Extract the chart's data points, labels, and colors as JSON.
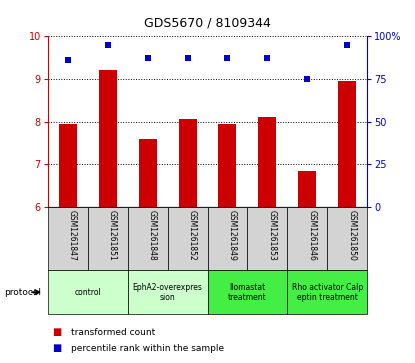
{
  "title": "GDS5670 / 8109344",
  "samples": [
    "GSM1261847",
    "GSM1261851",
    "GSM1261848",
    "GSM1261852",
    "GSM1261849",
    "GSM1261853",
    "GSM1261846",
    "GSM1261850"
  ],
  "transformed_counts": [
    7.95,
    9.2,
    7.6,
    8.05,
    7.95,
    8.1,
    6.85,
    8.95
  ],
  "percentile_ranks": [
    86,
    95,
    87,
    87,
    87,
    87,
    75,
    95
  ],
  "ylim_left": [
    6,
    10
  ],
  "ylim_right": [
    0,
    100
  ],
  "yticks_left": [
    6,
    7,
    8,
    9,
    10
  ],
  "yticks_right": [
    0,
    25,
    50,
    75,
    100
  ],
  "bar_color": "#cc0000",
  "scatter_color": "#0000cc",
  "groups": [
    {
      "label": "control",
      "indices": [
        0,
        1
      ],
      "color": "#ccffcc"
    },
    {
      "label": "EphA2-overexpres\nsion",
      "indices": [
        2,
        3
      ],
      "color": "#ccffcc"
    },
    {
      "label": "llomastat\ntreatment",
      "indices": [
        4,
        5
      ],
      "color": "#44ee44"
    },
    {
      "label": "Rho activator Calp\neptin treatment",
      "indices": [
        6,
        7
      ],
      "color": "#44ee44"
    }
  ],
  "legend_items": [
    {
      "label": "transformed count",
      "color": "#cc0000"
    },
    {
      "label": "percentile rank within the sample",
      "color": "#0000cc"
    }
  ],
  "protocol_label": "protocol",
  "bar_bottom": 6,
  "bar_width": 0.45
}
